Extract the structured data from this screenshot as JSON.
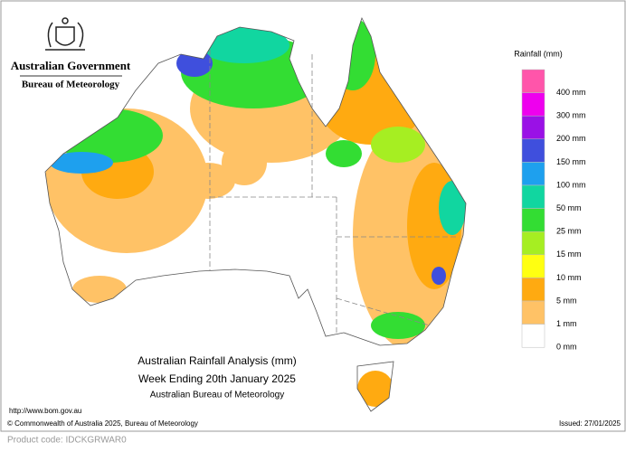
{
  "header": {
    "government": "Australian Government",
    "bureau": "Bureau of Meteorology"
  },
  "legend": {
    "title": "Rainfall (mm)",
    "items": [
      {
        "label": "400 mm",
        "color": "#ff55aa"
      },
      {
        "label": "300 mm",
        "color": "#ee00ee"
      },
      {
        "label": "200 mm",
        "color": "#9a11e6"
      },
      {
        "label": "150 mm",
        "color": "#3f4fdd"
      },
      {
        "label": "100 mm",
        "color": "#1ea0ee"
      },
      {
        "label": "50 mm",
        "color": "#11d6a0"
      },
      {
        "label": "25 mm",
        "color": "#33dd33"
      },
      {
        "label": "15 mm",
        "color": "#a6ee22"
      },
      {
        "label": "10 mm",
        "color": "#ffff11"
      },
      {
        "label": "5 mm",
        "color": "#ffaa11"
      },
      {
        "label": "1 mm",
        "color": "#ffc266"
      },
      {
        "label": "0 mm",
        "color": "#ffffff"
      }
    ]
  },
  "map": {
    "title": "Australian Rainfall Analysis (mm)",
    "period": "Week Ending 20th January 2025",
    "source": "Australian Bureau of Meteorology"
  },
  "footer": {
    "url": "http://www.bom.gov.au",
    "copyright": "© Commonwealth of Australia 2025, Bureau of Meteorology",
    "issued": "Issued: 27/01/2025",
    "product_code": "Product code: IDCKGRWAR0"
  }
}
